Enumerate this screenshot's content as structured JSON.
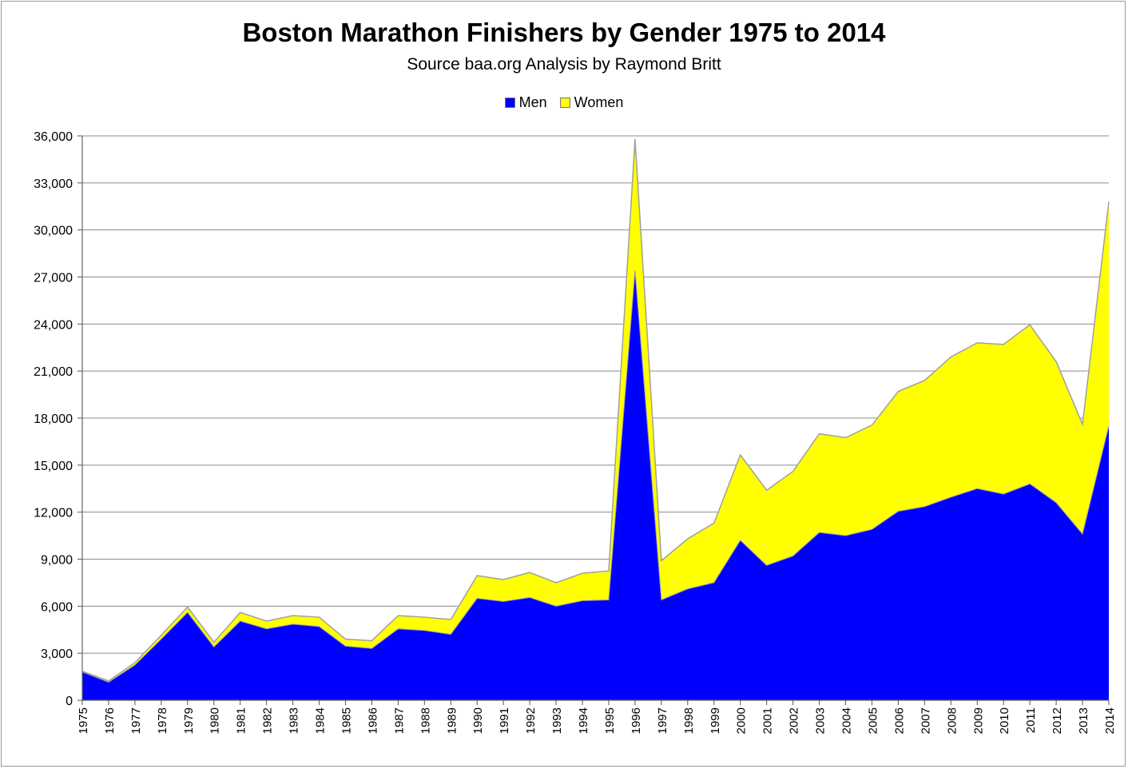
{
  "chart_data": {
    "type": "area",
    "stacked": true,
    "title": "Boston Marathon Finishers by Gender 1975 to 2014",
    "subtitle": "Source baa.org  Analysis by Raymond Britt",
    "xlabel": "",
    "ylabel": "",
    "ylim": [
      0,
      36000
    ],
    "yticks": [
      0,
      3000,
      6000,
      9000,
      12000,
      15000,
      18000,
      21000,
      24000,
      27000,
      30000,
      33000,
      36000
    ],
    "ytick_labels": [
      "0",
      "3,000",
      "6,000",
      "9,000",
      "12,000",
      "15,000",
      "18,000",
      "21,000",
      "24,000",
      "27,000",
      "30,000",
      "33,000",
      "36,000"
    ],
    "grid": true,
    "legend_position": "top-center",
    "categories": [
      "1975",
      "1976",
      "1977",
      "1978",
      "1979",
      "1980",
      "1981",
      "1982",
      "1983",
      "1984",
      "1985",
      "1986",
      "1987",
      "1988",
      "1989",
      "1990",
      "1991",
      "1992",
      "1993",
      "1994",
      "1995",
      "1996",
      "1997",
      "1998",
      "1999",
      "2000",
      "2001",
      "2002",
      "2003",
      "2004",
      "2005",
      "2006",
      "2007",
      "2008",
      "2009",
      "2010",
      "2011",
      "2012",
      "2013",
      "2014"
    ],
    "series": [
      {
        "name": "Men",
        "color": "#0000ff",
        "values": [
          1800,
          1150,
          2250,
          3900,
          5600,
          3400,
          5050,
          4550,
          4850,
          4700,
          3450,
          3300,
          4550,
          4450,
          4200,
          6500,
          6300,
          6550,
          6000,
          6350,
          6400,
          27400,
          6400,
          7100,
          7500,
          10200,
          8600,
          9200,
          10700,
          10500,
          10900,
          12050,
          12350,
          12950,
          13500,
          13150,
          13800,
          12600,
          10600,
          17500
        ]
      },
      {
        "name": "Women",
        "color": "#ffff00",
        "values": [
          50,
          80,
          150,
          250,
          350,
          300,
          550,
          500,
          550,
          600,
          450,
          500,
          850,
          850,
          950,
          1450,
          1400,
          1600,
          1500,
          1750,
          1850,
          8400,
          2500,
          3200,
          3800,
          5450,
          4800,
          5400,
          6300,
          6250,
          6650,
          7650,
          8050,
          8950,
          9300,
          9550,
          10150,
          9000,
          7000,
          14300
        ]
      }
    ]
  }
}
